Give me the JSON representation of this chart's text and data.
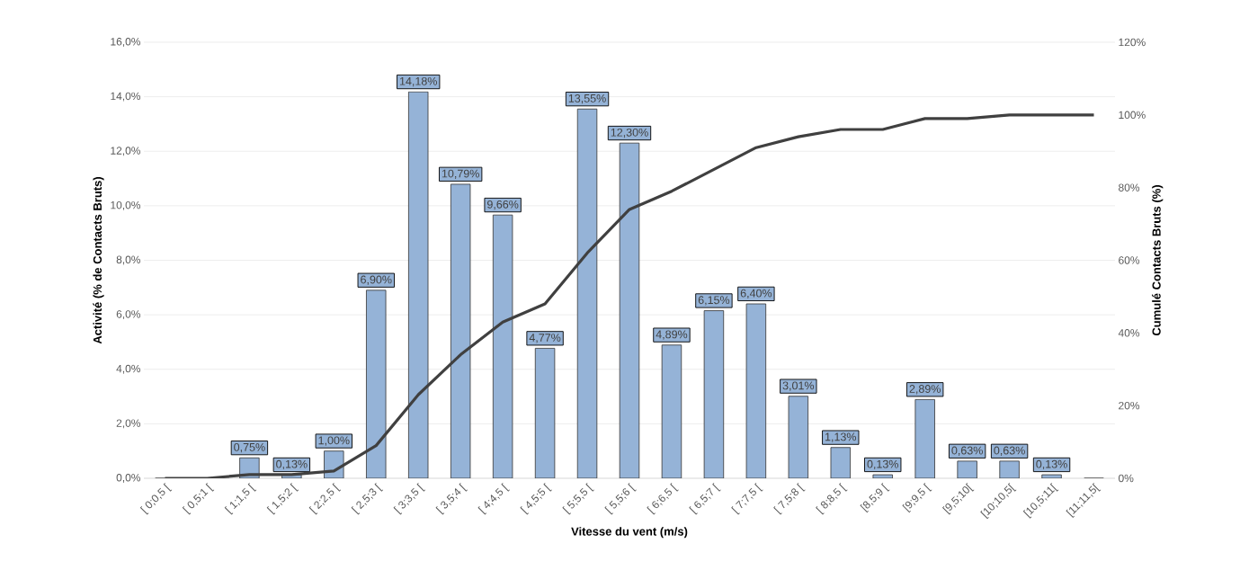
{
  "chart_data": {
    "type": "bar",
    "xlabel": "Vitesse du vent (m/s)",
    "ylabel": "Activité (% de Contacts Bruts)",
    "y2label": "Cumulé Contacts Bruts (%)",
    "categories": [
      "[ 0;0,5 [",
      "[ 0,5;1 [",
      "[ 1;1,5 [",
      "[ 1,5;2 [",
      "[ 2;2,5 [",
      "[ 2,5;3 [",
      "[ 3;3,5 [",
      "[ 3,5;4 [",
      "[ 4;4,5 [",
      "[ 4,5;5 [",
      "[ 5;5,5 [",
      "[ 5,5;6 [",
      "[ 6;6,5 [",
      "[ 6,5;7 [",
      "[ 7;7,5 [",
      "[ 7,5;8 [",
      "[ 8;8,5 [",
      "[8,5;9 [",
      "[9;9,5 [",
      "[9,5;10[",
      "[10;10,5[",
      "[10,5;11[",
      "[11;11,5["
    ],
    "series": [
      {
        "color": "#95b3d7",
        "values": [
          0,
          0,
          0.75,
          0.13,
          1.0,
          6.9,
          14.18,
          10.79,
          9.66,
          4.77,
          13.55,
          12.3,
          4.89,
          6.15,
          6.4,
          3.01,
          1.13,
          0.13,
          2.89,
          0.63,
          0.63,
          0.13,
          0
        ],
        "value_labels": [
          null,
          null,
          "0,75%",
          "0,13%",
          "1,00%",
          "6,90%",
          "14,18%",
          "10,79%",
          "9,66%",
          "4,77%",
          "13,55%",
          "12,30%",
          "4,89%",
          "6,15%",
          "6,40%",
          "3,01%",
          "1,13%",
          "0,13%",
          "2,89%",
          "0,63%",
          "0,63%",
          "0,13%",
          null
        ]
      },
      {
        "type": "line",
        "axis": "y2",
        "color": "#404040",
        "values": [
          0,
          0,
          1,
          1,
          2,
          9,
          23,
          34,
          43,
          48,
          62,
          74,
          79,
          85,
          91,
          94,
          96,
          96,
          99,
          99,
          100,
          100,
          100
        ]
      }
    ],
    "ylim": [
      0,
      16
    ],
    "yticks": [
      {
        "value": 0,
        "label": "0,0%"
      },
      {
        "value": 2,
        "label": "2,0%"
      },
      {
        "value": 4,
        "label": "4,0%"
      },
      {
        "value": 6,
        "label": "6,0%"
      },
      {
        "value": 8,
        "label": "8,0%"
      },
      {
        "value": 10,
        "label": "10,0%"
      },
      {
        "value": 12,
        "label": "12,0%"
      },
      {
        "value": 14,
        "label": "14,0%"
      },
      {
        "value": 16,
        "label": "16,0%"
      }
    ],
    "y2lim": [
      0,
      120
    ],
    "y2ticks": [
      {
        "value": 0,
        "label": "0%"
      },
      {
        "value": 20,
        "label": "20%"
      },
      {
        "value": 40,
        "label": "40%"
      },
      {
        "value": 60,
        "label": "60%"
      },
      {
        "value": 80,
        "label": "80%"
      },
      {
        "value": 100,
        "label": "100%"
      },
      {
        "value": 120,
        "label": "120%"
      }
    ],
    "grid": "y",
    "marker": "none",
    "line_style": "solid"
  }
}
